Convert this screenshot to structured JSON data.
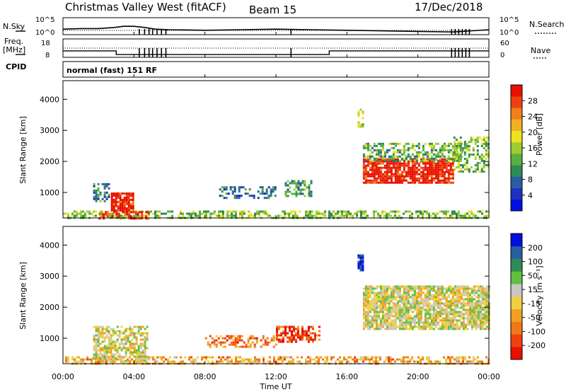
{
  "header": {
    "title": "Christmas Valley West (fitACF)",
    "beam": "Beam 15",
    "date": "17/Dec/2018"
  },
  "sidebar_labels": {
    "nsky": "N.Sky",
    "freq_line1": "Freq.",
    "freq_line2": "[MHz]",
    "cpid": "CPID",
    "nsearch": "N.Search",
    "nave": "Nave"
  },
  "mode_text": "normal (fast) 151 RF",
  "chart_data": [
    {
      "type": "line",
      "name_panel": "noise",
      "left_axis": {
        "label": "N.Sky",
        "ticks": [
          "10^5",
          "10^0"
        ]
      },
      "right_axis": {
        "label": "N.Search",
        "ticks": [
          "10^5",
          "10^0"
        ]
      },
      "x": [
        0,
        1,
        2,
        2.9,
        3.4,
        4,
        4.6,
        5.2,
        6,
        8,
        10,
        12,
        14,
        16,
        18,
        20,
        22,
        24
      ],
      "values": [
        0.3,
        0.35,
        0.35,
        0.45,
        0.55,
        0.55,
        0.45,
        0.3,
        0.25,
        0.2,
        0.25,
        0.3,
        0.25,
        0.2,
        0.15,
        0.1,
        0.05,
        0.25
      ]
    },
    {
      "type": "line",
      "name_panel": "frequency",
      "left_axis": {
        "label": "Freq. [MHz]",
        "ticks": [
          "18",
          "8"
        ]
      },
      "right_axis": {
        "label": "Nave",
        "ticks": [
          "60",
          "0"
        ]
      },
      "freq_steps": [
        [
          0,
          11.5
        ],
        [
          3.0,
          9.5
        ],
        [
          15.0,
          11.5
        ],
        [
          24,
          11.5
        ]
      ],
      "nave_level": 0.5
    },
    {
      "type": "heatmap",
      "name_panel": "power",
      "ylabel": "Slant Range [km]",
      "yticks": [
        1000,
        2000,
        3000,
        4000
      ],
      "ylim": [
        180,
        4600
      ],
      "xlim": [
        0,
        24
      ],
      "colorbar": {
        "label": "Power [dB]",
        "ticks": [
          "4",
          "8",
          "12",
          "16",
          "20",
          "24",
          "28"
        ],
        "colors": [
          "#0010e0",
          "#2030c0",
          "#2a5da0",
          "#2e8b57",
          "#5ab040",
          "#a0cc30",
          "#f0e020",
          "#f0b020",
          "#f08018",
          "#f04010",
          "#e81000"
        ]
      },
      "regions": [
        {
          "t0": 0,
          "t1": 24,
          "r0": 200,
          "r1": 420,
          "level": 0.45,
          "density": 0.55
        },
        {
          "t0": 1.7,
          "t1": 2.6,
          "r0": 700,
          "r1": 1300,
          "level": 0.3,
          "density": 0.5
        },
        {
          "t0": 2.7,
          "t1": 4.0,
          "r0": 400,
          "r1": 1000,
          "level": 0.95,
          "density": 0.85
        },
        {
          "t0": 2.0,
          "t1": 4.8,
          "r0": 180,
          "r1": 400,
          "level": 0.9,
          "density": 0.6
        },
        {
          "t0": 8.8,
          "t1": 12.0,
          "r0": 800,
          "r1": 1200,
          "level": 0.25,
          "density": 0.45
        },
        {
          "t0": 12.5,
          "t1": 14.0,
          "r0": 900,
          "r1": 1400,
          "level": 0.35,
          "density": 0.5
        },
        {
          "t0": 16.6,
          "t1": 16.9,
          "r0": 3100,
          "r1": 3700,
          "level": 0.5,
          "density": 0.7
        },
        {
          "t0": 16.9,
          "t1": 22.0,
          "r0": 1300,
          "r1": 2100,
          "level": 0.95,
          "density": 0.85
        },
        {
          "t0": 16.9,
          "t1": 22.5,
          "r0": 2000,
          "r1": 2600,
          "level": 0.4,
          "density": 0.55
        },
        {
          "t0": 22.0,
          "t1": 24.0,
          "r0": 1700,
          "r1": 2800,
          "level": 0.45,
          "density": 0.5
        }
      ]
    },
    {
      "type": "heatmap",
      "name_panel": "velocity",
      "ylabel": "Slant Range [km]",
      "xlabel": "Time UT",
      "xticks": [
        "00:00",
        "04:00",
        "08:00",
        "12:00",
        "16:00",
        "20:00",
        "00:00"
      ],
      "yticks": [
        1000,
        2000,
        3000,
        4000
      ],
      "ylim": [
        180,
        4600
      ],
      "xlim": [
        0,
        24
      ],
      "colorbar": {
        "label": "Velocity [m s⁻¹]",
        "ticks": [
          "-200",
          "-100",
          "-50",
          "-15",
          "15",
          "50",
          "100",
          "200"
        ],
        "colors": [
          "#e81000",
          "#f04010",
          "#f07818",
          "#f0a020",
          "#f0d040",
          "#c8c8c0",
          "#60c040",
          "#2e8b57",
          "#2a5da0",
          "#0010e0"
        ]
      },
      "regions": [
        {
          "t0": 0,
          "t1": 24,
          "r0": 200,
          "r1": 420,
          "level": 0.35,
          "density": 0.55
        },
        {
          "t0": 1.7,
          "t1": 4.8,
          "r0": 300,
          "r1": 1400,
          "level": 0.5,
          "density": 0.65
        },
        {
          "t0": 8.0,
          "t1": 12.0,
          "r0": 700,
          "r1": 1100,
          "level": 0.25,
          "density": 0.5
        },
        {
          "t0": 12.0,
          "t1": 14.5,
          "r0": 900,
          "r1": 1400,
          "level": 0.15,
          "density": 0.6
        },
        {
          "t0": 16.6,
          "t1": 16.9,
          "r0": 3200,
          "r1": 3700,
          "level": 0.98,
          "density": 0.75
        },
        {
          "t0": 16.9,
          "t1": 24.0,
          "r0": 1300,
          "r1": 2700,
          "level": 0.5,
          "density": 0.85
        }
      ]
    }
  ]
}
